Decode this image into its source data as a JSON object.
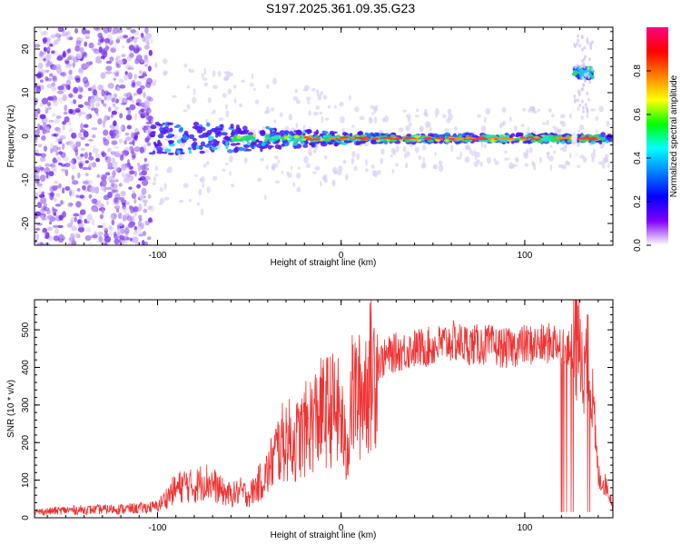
{
  "title": "S197.2025.361.09.35.G23",
  "colors": {
    "spectrum_core": "#ff3344",
    "spectrum_mid": "#22dd66",
    "spectrum_low": "#5511ee",
    "spectrum_faint": "#d6c8f5",
    "snr_line": "#ee3333"
  },
  "chart_data": [
    {
      "type": "heatmap",
      "name": "spectrogram",
      "xlabel": "Height of straight line (km)",
      "ylabel": "Frequency (Hz)",
      "xlim": [
        -167,
        148
      ],
      "ylim": [
        -25,
        25
      ],
      "xticks": [
        -100,
        0,
        100
      ],
      "yticks": [
        20,
        10,
        0,
        -10,
        -20
      ],
      "colorbar": {
        "label": "Normalized spectral amplitude",
        "range": [
          0,
          1
        ],
        "ticks": [
          "0.0",
          "0.2",
          "0.4",
          "0.6",
          "0.8"
        ],
        "tick_values": [
          0.0,
          0.2,
          0.4,
          0.6,
          0.8
        ],
        "stops": [
          "#ff0080",
          "#ff0000",
          "#ff8000",
          "#ffff00",
          "#00ff00",
          "#00ffff",
          "#0080ff",
          "#0000ff",
          "#8000ff",
          "#ffffff"
        ]
      },
      "features": [
        {
          "name": "noise-scatter",
          "x_range": [
            -167,
            -103
          ],
          "freq_range": [
            -25,
            25
          ]
        },
        {
          "name": "signal-band",
          "x_range": [
            -103,
            148
          ],
          "freq_center": -0.5
        },
        {
          "name": "side-tone",
          "x_range": [
            127,
            137
          ],
          "freq_center": 14.5
        }
      ]
    },
    {
      "type": "line",
      "name": "snr",
      "xlabel": "Height of straight line (km)",
      "ylabel": "SNR (10 * v/v)",
      "xlim": [
        -167,
        148
      ],
      "ylim": [
        0,
        580
      ],
      "xticks": [
        -100,
        0,
        100
      ],
      "yticks": [
        0,
        100,
        200,
        300,
        400,
        500
      ],
      "series": [
        {
          "name": "SNR",
          "color": "#ee3333",
          "x": [
            -167,
            -150,
            -130,
            -110,
            -100,
            -92,
            -85,
            -80,
            -75,
            -70,
            -65,
            -60,
            -55,
            -50,
            -45,
            -40,
            -35,
            -30,
            -25,
            -20,
            -15,
            -10,
            -5,
            0,
            3,
            5,
            8,
            10,
            15,
            20,
            25,
            30,
            40,
            50,
            60,
            70,
            80,
            90,
            100,
            110,
            118,
            122,
            125,
            128,
            132,
            135,
            137,
            140,
            145,
            148
          ],
          "y": [
            15,
            20,
            22,
            25,
            30,
            70,
            90,
            80,
            100,
            90,
            70,
            60,
            70,
            60,
            90,
            120,
            180,
            210,
            200,
            230,
            260,
            280,
            290,
            270,
            150,
            310,
            330,
            320,
            370,
            410,
            430,
            440,
            450,
            455,
            470,
            460,
            460,
            450,
            460,
            460,
            470,
            450,
            440,
            460,
            420,
            400,
            300,
            110,
            80,
            30
          ]
        }
      ]
    }
  ]
}
